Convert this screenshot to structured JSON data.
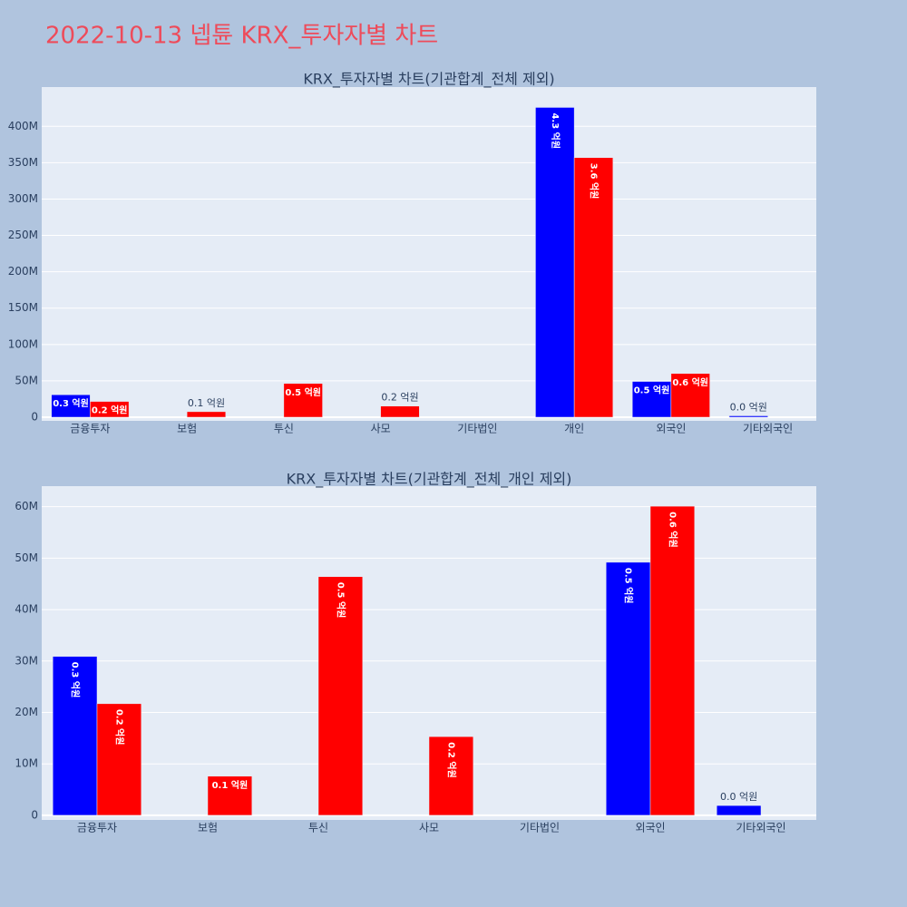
{
  "title": "2022-10-13 넵튠 KRX_투자자별 차트",
  "chart_data": [
    {
      "type": "bar",
      "title": "KRX_투자자별 차트(기관합계_전체 제외)",
      "categories": [
        "금융투자",
        "보험",
        "투신",
        "사모",
        "기타법인",
        "개인",
        "외국인",
        "기타외국인"
      ],
      "series": [
        {
          "color": "#0000ff",
          "values": [
            30900000,
            0,
            0,
            0,
            0,
            426000000,
            49200000,
            1900000
          ],
          "value_labels": [
            "0.3 억원",
            null,
            null,
            null,
            null,
            "4.3 억원",
            "0.5 억원",
            "0.0 억원"
          ]
        },
        {
          "color": "#ff0000",
          "values": [
            21700000,
            7600000,
            46400000,
            15300000,
            0,
            357000000,
            60100000,
            0
          ],
          "value_labels": [
            "0.2 억원",
            "0.1 억원",
            "0.5 억원",
            "0.2 억원",
            null,
            "3.6 억원",
            "0.6 억원",
            null
          ]
        }
      ],
      "ylim": [
        -5000000,
        454000000
      ],
      "yticks": [
        0,
        {
          "value": 50000000,
          "label": "50M"
        },
        {
          "value": 100000000,
          "label": "100M"
        },
        {
          "value": 150000000,
          "label": "150M"
        },
        {
          "value": 200000000,
          "label": "200M"
        },
        {
          "value": 250000000,
          "label": "250M"
        },
        {
          "value": 300000000,
          "label": "300M"
        },
        {
          "value": 350000000,
          "label": "350M"
        },
        {
          "value": 400000000,
          "label": "400M"
        }
      ],
      "grid": true
    },
    {
      "type": "bar",
      "title": "KRX_투자자별 차트(기관합계_전체_개인 제외)",
      "categories": [
        "금융투자",
        "보험",
        "투신",
        "사모",
        "기타법인",
        "외국인",
        "기타외국인"
      ],
      "series": [
        {
          "color": "#0000ff",
          "values": [
            30900000,
            0,
            0,
            0,
            0,
            49200000,
            1900000
          ],
          "value_labels": [
            "0.3 억원",
            null,
            null,
            null,
            null,
            "0.5 억원",
            "0.0 억원"
          ]
        },
        {
          "color": "#ff0000",
          "values": [
            21700000,
            7600000,
            46400000,
            15300000,
            0,
            60100000,
            0
          ],
          "value_labels": [
            "0.2 억원",
            "0.1 억원",
            "0.5 억원",
            "0.2 억원",
            null,
            "0.6 억원",
            null
          ]
        }
      ],
      "ylim": [
        -900000,
        64000000
      ],
      "yticks": [
        0,
        {
          "value": 10000000,
          "label": "10M"
        },
        {
          "value": 20000000,
          "label": "20M"
        },
        {
          "value": 30000000,
          "label": "30M"
        },
        {
          "value": 40000000,
          "label": "40M"
        },
        {
          "value": 50000000,
          "label": "50M"
        },
        {
          "value": 60000000,
          "label": "60M"
        }
      ],
      "grid": true
    }
  ]
}
